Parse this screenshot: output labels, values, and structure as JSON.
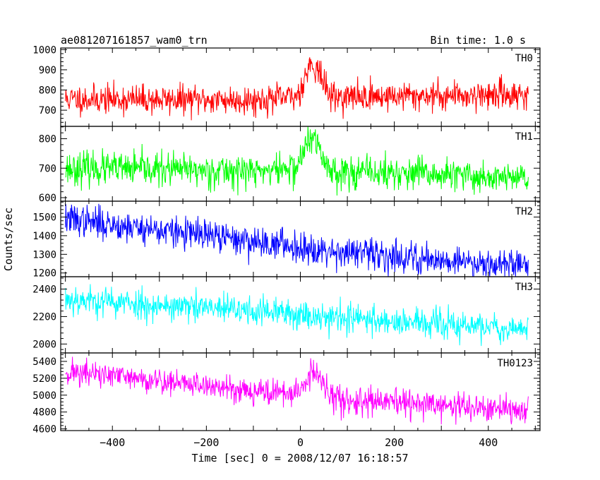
{
  "chart_data": {
    "type": "line",
    "title": "ae081207161857_wam0_trn",
    "bin_label": "Bin time: 1.0 s",
    "xlabel": "Time [sec] 0 = 2008/12/07 16:18:57",
    "ylabel": "Counts/sec",
    "xlim": [
      -510,
      510
    ],
    "data_xrange": [
      -500,
      485
    ],
    "x_ticks": [
      -400,
      -200,
      0,
      200,
      400
    ],
    "x_tick_labels": [
      "−400",
      "−200",
      "0",
      "200",
      "400"
    ],
    "panels": [
      {
        "name": "TH0",
        "color": "#ff0000",
        "ylim": [
          620,
          1008
        ],
        "y_ticks": [
          700,
          800,
          900,
          1000
        ],
        "y_tick_labels": [
          "700",
          "800",
          "900",
          "1000"
        ],
        "baseline": [
          [
            -500,
            755
          ],
          [
            -100,
            750
          ],
          [
            -10,
            765
          ],
          [
            0,
            800
          ],
          [
            15,
            900
          ],
          [
            25,
            935
          ],
          [
            40,
            890
          ],
          [
            55,
            800
          ],
          [
            70,
            765
          ],
          [
            485,
            780
          ]
        ],
        "noise": 36,
        "seed": 11
      },
      {
        "name": "TH1",
        "color": "#00ff00",
        "ylim": [
          588,
          842
        ],
        "y_ticks": [
          600,
          700,
          800
        ],
        "y_tick_labels": [
          "600",
          "700",
          "800"
        ],
        "baseline": [
          [
            -500,
            700
          ],
          [
            -100,
            690
          ],
          [
            -10,
            700
          ],
          [
            0,
            730
          ],
          [
            15,
            790
          ],
          [
            25,
            800
          ],
          [
            40,
            770
          ],
          [
            55,
            710
          ],
          [
            70,
            690
          ],
          [
            485,
            665
          ]
        ],
        "noise": 28,
        "seed": 23
      },
      {
        "name": "TH2",
        "color": "#0000ff",
        "ylim": [
          1180,
          1585
        ],
        "y_ticks": [
          1200,
          1300,
          1400,
          1500
        ],
        "y_tick_labels": [
          "1200",
          "1300",
          "1400",
          "1500"
        ],
        "baseline": [
          [
            -500,
            1490
          ],
          [
            -300,
            1430
          ],
          [
            -100,
            1370
          ],
          [
            100,
            1310
          ],
          [
            300,
            1270
          ],
          [
            485,
            1240
          ]
        ],
        "noise": 42,
        "seed": 37
      },
      {
        "name": "TH3",
        "color": "#00ffff",
        "ylim": [
          1935,
          2490
        ],
        "y_ticks": [
          2000,
          2200,
          2400
        ],
        "y_tick_labels": [
          "2000",
          "2200",
          "2400"
        ],
        "baseline": [
          [
            -500,
            2330
          ],
          [
            -300,
            2280
          ],
          [
            -100,
            2240
          ],
          [
            100,
            2190
          ],
          [
            300,
            2140
          ],
          [
            485,
            2110
          ]
        ],
        "noise": 55,
        "seed": 53
      },
      {
        "name": "TH0123",
        "color": "#ff00ff",
        "ylim": [
          4580,
          5500
        ],
        "y_ticks": [
          4600,
          4800,
          5000,
          5200,
          5400
        ],
        "y_tick_labels": [
          "4600",
          "4800",
          "5000",
          "5200",
          "5400"
        ],
        "baseline": [
          [
            -500,
            5280
          ],
          [
            -300,
            5170
          ],
          [
            -150,
            5080
          ],
          [
            -10,
            5010
          ],
          [
            0,
            5060
          ],
          [
            15,
            5200
          ],
          [
            25,
            5290
          ],
          [
            40,
            5200
          ],
          [
            60,
            5000
          ],
          [
            100,
            4930
          ],
          [
            300,
            4880
          ],
          [
            485,
            4800
          ]
        ],
        "noise": 80,
        "seed": 71
      }
    ]
  }
}
